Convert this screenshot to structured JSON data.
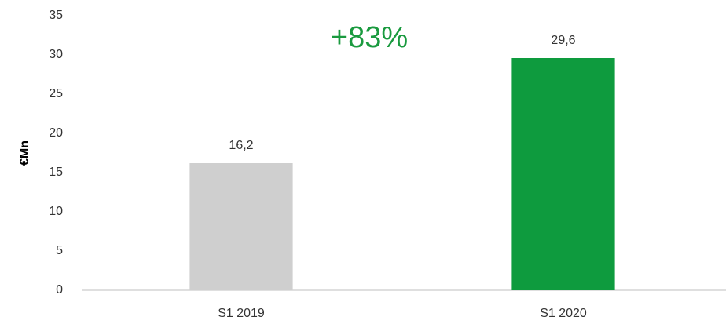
{
  "chart_data": {
    "type": "bar",
    "ylabel": "€Mn",
    "annotation": "+83%",
    "categories": [
      "S1 2019",
      "S1 2020"
    ],
    "values": [
      16.2,
      29.6
    ],
    "value_labels": [
      "16,2",
      "29,6"
    ],
    "colors": [
      "#cfcfcf",
      "#0e9b3e"
    ],
    "ylim": [
      0,
      35
    ],
    "yticks": [
      0,
      5,
      10,
      15,
      20,
      25,
      30,
      35
    ],
    "grid": false
  }
}
